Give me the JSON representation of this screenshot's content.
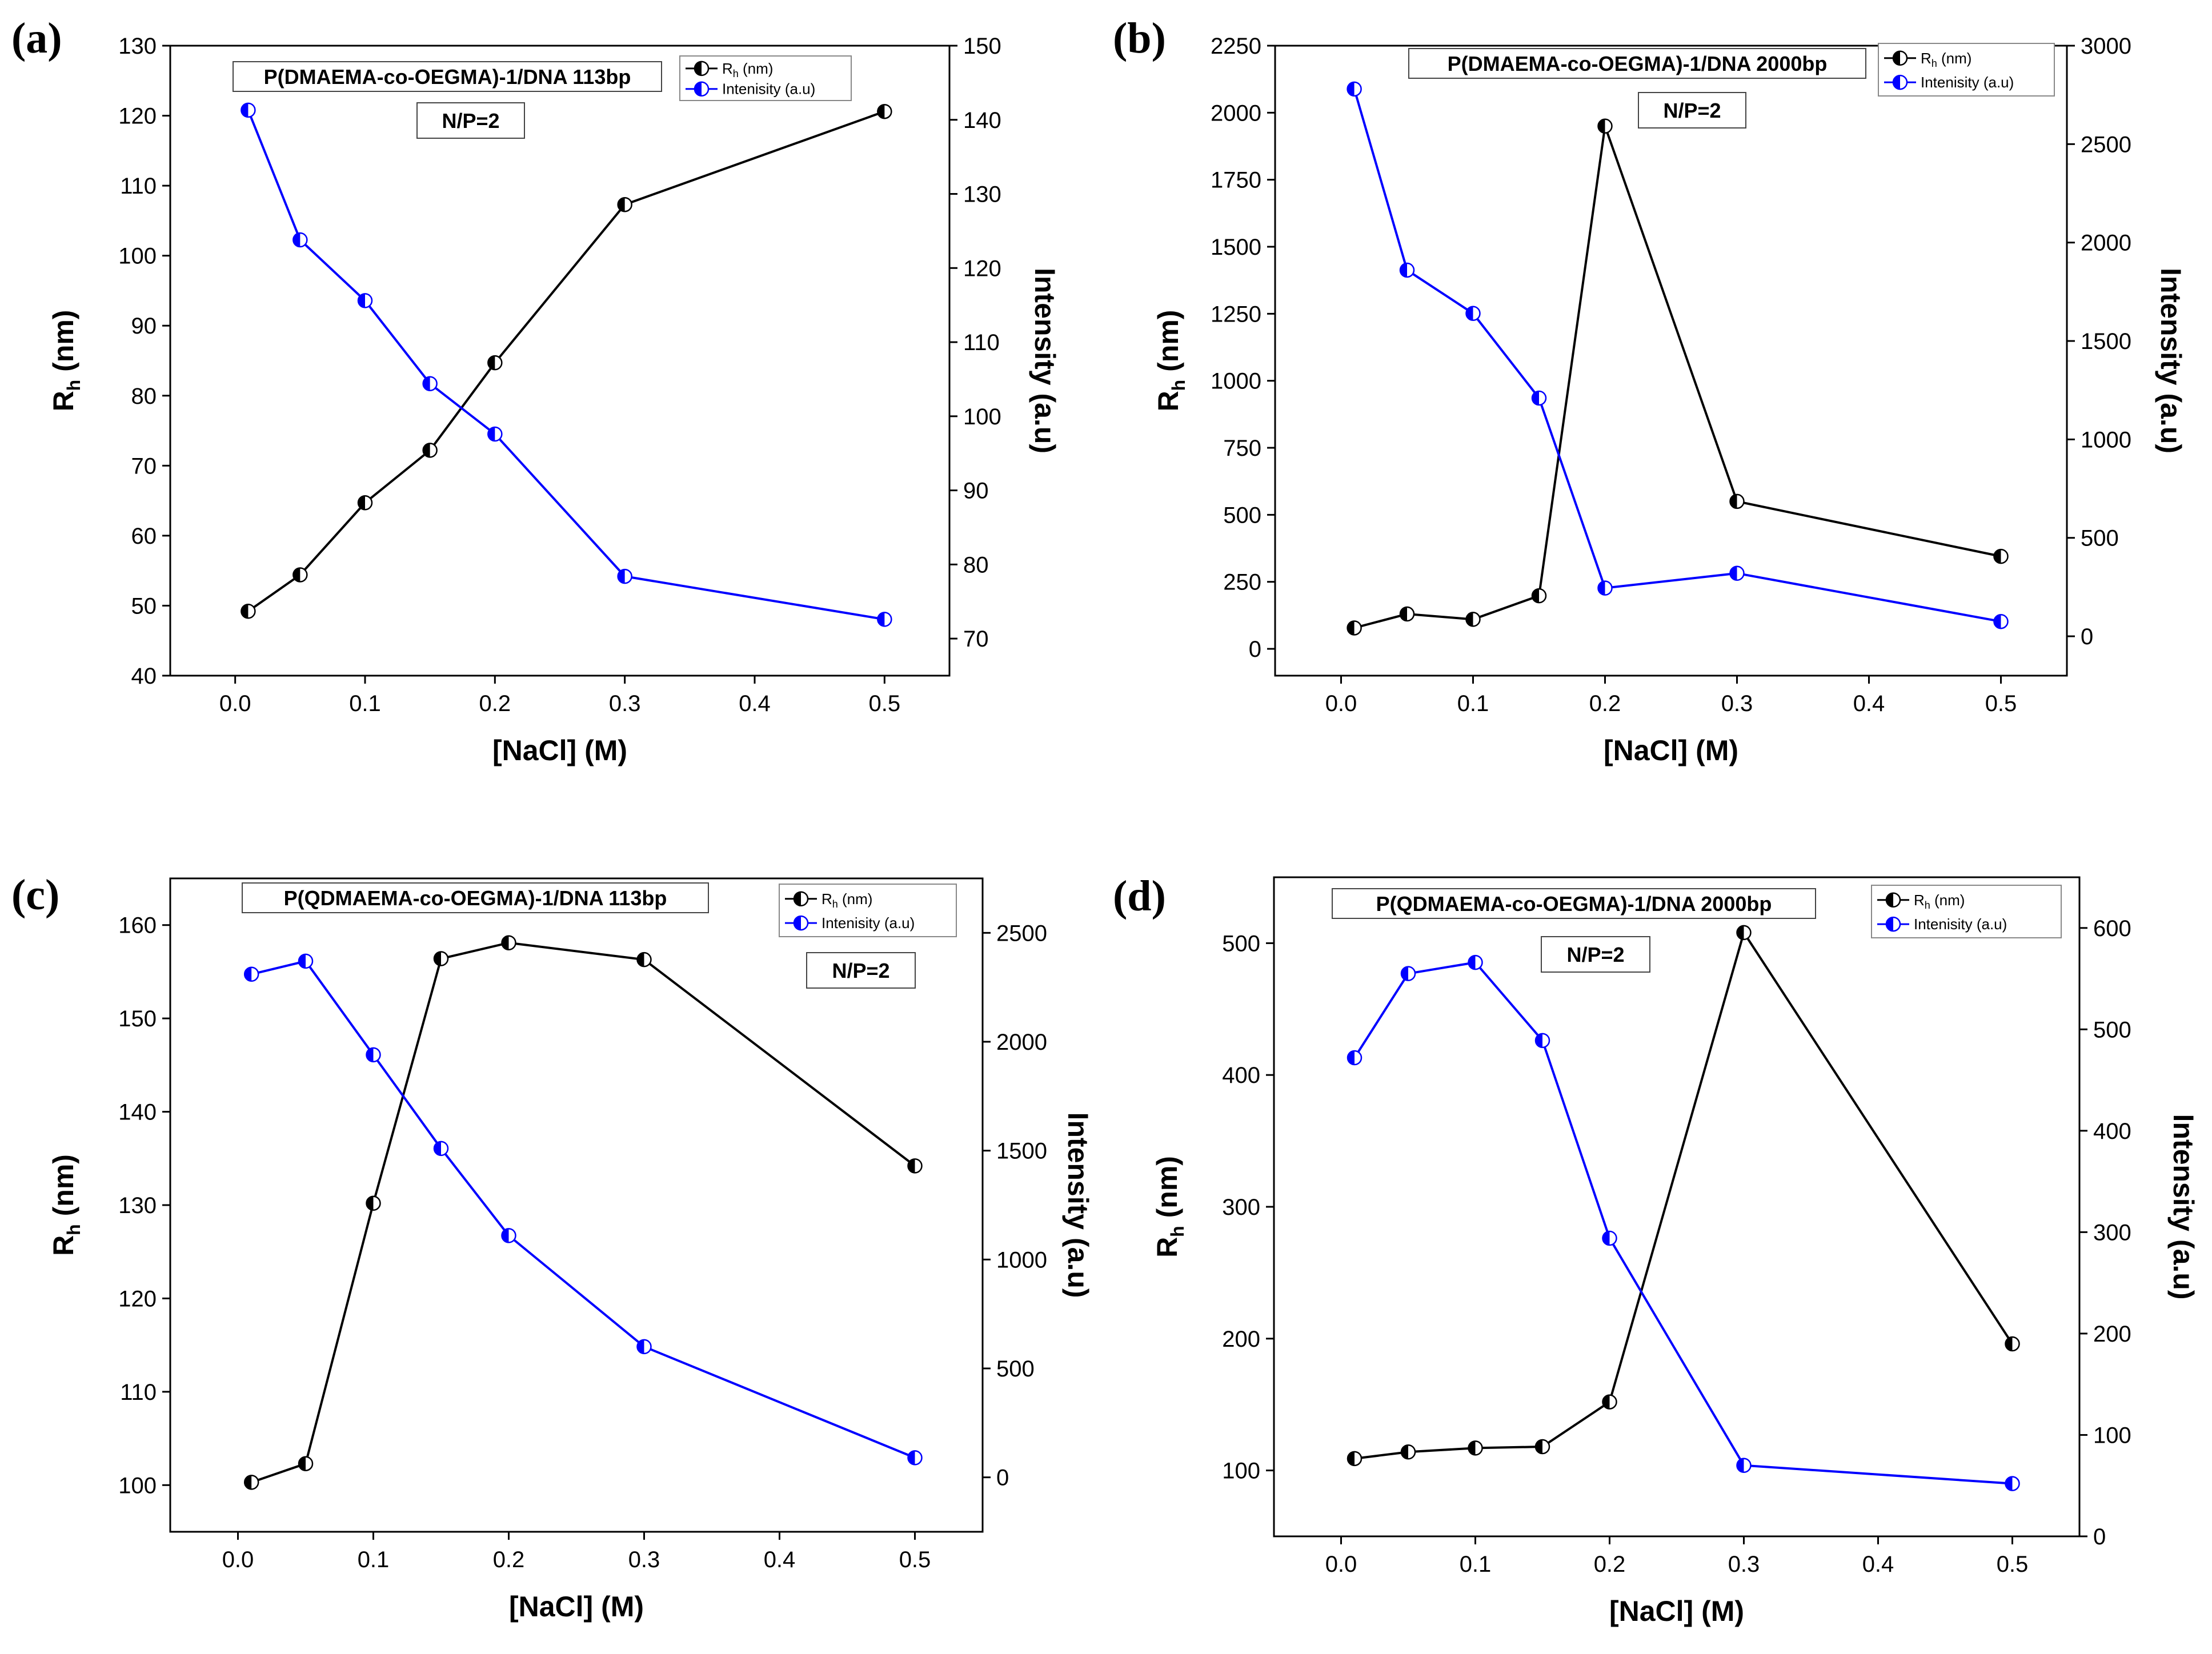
{
  "chart_data": [
    {
      "type": "line",
      "panel": "(a)",
      "x": [
        0.01,
        0.05,
        0.1,
        0.15,
        0.2,
        0.3,
        0.5
      ],
      "xlabel": "[NaCl] (M)",
      "xlim": [
        -0.05,
        0.55
      ],
      "xticks": [
        "0.0",
        "0.1",
        "0.2",
        "0.3",
        "0.4",
        "0.5"
      ],
      "ylabel": {
        "main": "R",
        "sub": "h",
        "rest": " (nm)"
      },
      "ylim": [
        40,
        130
      ],
      "yticks": [
        "40",
        "50",
        "60",
        "70",
        "80",
        "90",
        "100",
        "110",
        "120",
        "130"
      ],
      "y2label": "Intensity (a.u)",
      "y2lim": [
        65,
        150
      ],
      "y2ticks": [
        "70",
        "80",
        "90",
        "100",
        "110",
        "120",
        "130",
        "140",
        "150"
      ],
      "annotation_title": "P(DMAEMA-co-OEGMA)-1/DNA 113bp",
      "annotation_np": "N/P=2",
      "legend": {
        "rh_main": "R",
        "rh_sub": "h",
        "rh_rest": " (nm)",
        "intensity": "Intenisity (a.u)"
      },
      "series": [
        {
          "name": "Rh (nm)",
          "axis": "left",
          "color": "#000000",
          "values": [
            49.2,
            54.4,
            64.7,
            72.2,
            84.7,
            107.3,
            120.6
          ]
        },
        {
          "name": "Intenisity (a.u)",
          "axis": "right",
          "color": "#0000ff",
          "values": [
            141.3,
            123.8,
            115.6,
            104.4,
            97.6,
            78.4,
            72.6
          ]
        }
      ]
    },
    {
      "type": "line",
      "panel": "(b)",
      "x": [
        0.01,
        0.05,
        0.1,
        0.15,
        0.2,
        0.3,
        0.5
      ],
      "xlabel": "[NaCl] (M)",
      "xlim": [
        -0.05,
        0.55
      ],
      "xticks": [
        "0.0",
        "0.1",
        "0.2",
        "0.3",
        "0.4",
        "0.5"
      ],
      "ylabel": {
        "main": "R",
        "sub": "h",
        "rest": " (nm)"
      },
      "ylim": [
        -100,
        2250
      ],
      "yticks": [
        "0",
        "250",
        "500",
        "750",
        "1000",
        "1250",
        "1500",
        "1750",
        "2000",
        "2250"
      ],
      "y2label": "Intensity (a.u)",
      "y2lim": [
        -200,
        3000
      ],
      "y2ticks": [
        "0",
        "500",
        "1000",
        "1500",
        "2000",
        "2500",
        "3000"
      ],
      "annotation_title": "P(DMAEMA-co-OEGMA)-1/DNA 2000bp",
      "annotation_np": "N/P=2",
      "legend": {
        "rh_main": "R",
        "rh_sub": "h",
        "rh_rest": " (nm)",
        "intensity": "Intenisity (a.u)"
      },
      "series": [
        {
          "name": "Rh (nm)",
          "axis": "left",
          "color": "#000000",
          "values": [
            78,
            130,
            110,
            198,
            1950,
            550,
            345
          ]
        },
        {
          "name": "Intenisity (a.u)",
          "axis": "right",
          "color": "#0000ff",
          "values": [
            2780,
            1860,
            1640,
            1210,
            245,
            320,
            75
          ]
        }
      ]
    },
    {
      "type": "line",
      "panel": "(c)",
      "x": [
        0.01,
        0.05,
        0.1,
        0.15,
        0.2,
        0.3,
        0.5
      ],
      "xlabel": "[NaCl] (M)",
      "xlim": [
        -0.05,
        0.55
      ],
      "xticks": [
        "0.0",
        "0.1",
        "0.2",
        "0.3",
        "0.4",
        "0.5"
      ],
      "ylabel": {
        "main": "R",
        "sub": "h",
        "rest": " (nm)"
      },
      "ylim": [
        95,
        165
      ],
      "yticks": [
        "100",
        "110",
        "120",
        "130",
        "140",
        "150",
        "160"
      ],
      "y2label": "Intensity (a.u)",
      "y2lim": [
        -250,
        2750
      ],
      "y2ticks": [
        "0",
        "500",
        "1000",
        "1500",
        "2000",
        "2500"
      ],
      "annotation_title": "P(QDMAEMA-co-OEGMA)-1/DNA 113bp",
      "annotation_np": "N/P=2",
      "legend": {
        "rh_main": "R",
        "rh_sub": "h",
        "rh_rest": " (nm)",
        "intensity": "Intenisity (a.u)"
      },
      "series": [
        {
          "name": "Rh (nm)",
          "axis": "left",
          "color": "#000000",
          "values": [
            100.3,
            102.3,
            130.2,
            156.4,
            158.1,
            156.3,
            134.2
          ]
        },
        {
          "name": "Intenisity (a.u)",
          "axis": "right",
          "color": "#0000ff",
          "values": [
            2310,
            2370,
            1940,
            1510,
            1110,
            600,
            90
          ]
        }
      ]
    },
    {
      "type": "line",
      "panel": "(d)",
      "x": [
        0.01,
        0.05,
        0.1,
        0.15,
        0.2,
        0.3,
        0.5
      ],
      "xlabel": "[NaCl] (M)",
      "xlim": [
        -0.05,
        0.55
      ],
      "xticks": [
        "0.0",
        "0.1",
        "0.2",
        "0.3",
        "0.4",
        "0.5"
      ],
      "ylabel": {
        "main": "R",
        "sub": "h",
        "rest": " (nm)"
      },
      "ylim": [
        50,
        550
      ],
      "yticks": [
        "100",
        "200",
        "300",
        "400",
        "500"
      ],
      "y2label": "Intensity (a.u)",
      "y2lim": [
        0,
        650
      ],
      "y2ticks": [
        "0",
        "100",
        "200",
        "300",
        "400",
        "500",
        "600"
      ],
      "annotation_title": "P(QDMAEMA-co-OEGMA)-1/DNA 2000bp",
      "annotation_np": "N/P=2",
      "legend": {
        "rh_main": "R",
        "rh_sub": "h",
        "rh_rest": " (nm)",
        "intensity": "Intenisity (a.u)"
      },
      "series": [
        {
          "name": "Rh (nm)",
          "axis": "left",
          "color": "#000000",
          "values": [
            109,
            114,
            117,
            118,
            152,
            508,
            196
          ]
        },
        {
          "name": "Intenisity (a.u)",
          "axis": "right",
          "color": "#0000ff",
          "values": [
            472,
            555,
            566,
            489,
            294,
            70,
            52
          ]
        }
      ]
    }
  ]
}
